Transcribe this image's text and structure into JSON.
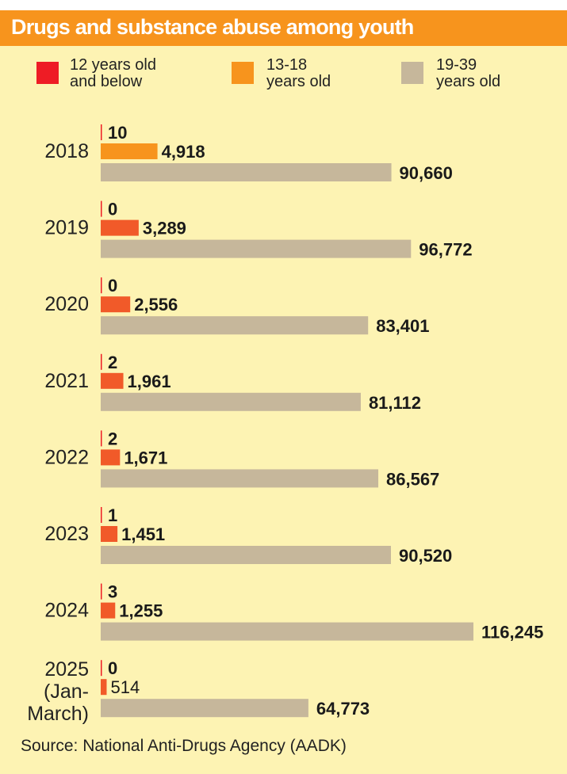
{
  "title": "Drugs and substance abuse among youth",
  "legend": [
    {
      "label": "12 years old\nand below",
      "color": "#ee1c25"
    },
    {
      "label": "13-18\nyears old",
      "color": "#f7941d"
    },
    {
      "label": "19-39\nyears old",
      "color": "#c6b79b"
    }
  ],
  "colors": {
    "background": "#fdf3b3",
    "title_bar": "#f7941d",
    "bar_12_and_below": "#ee1c25",
    "bar_13_18_2018": "#f7941d",
    "bar_13_18": "#f15a29",
    "bar_19_39": "#c6b79b"
  },
  "chart_data": {
    "type": "bar",
    "orientation": "horizontal",
    "categories": [
      "2018",
      "2019",
      "2020",
      "2021",
      "2022",
      "2023",
      "2024",
      "2025\n(Jan-\nMarch)"
    ],
    "series": [
      {
        "name": "12 years old and below",
        "values": [
          10,
          0,
          0,
          2,
          2,
          1,
          3,
          0
        ],
        "labels": [
          "10",
          "0",
          "0",
          "2",
          "2",
          "1",
          "3",
          "0"
        ]
      },
      {
        "name": "13-18 years old",
        "values": [
          4918,
          3289,
          2556,
          1961,
          1671,
          1451,
          1255,
          514
        ],
        "labels": [
          "4,918",
          "3,289",
          "2,556",
          "1,961",
          "1,671",
          "1,451",
          "1,255",
          "514"
        ]
      },
      {
        "name": "19-39 years old",
        "values": [
          90660,
          96772,
          83401,
          81112,
          86567,
          90520,
          116245,
          64773
        ],
        "labels": [
          "90,660",
          "96,772",
          "83,401",
          "81,112",
          "86,567",
          "90,520",
          "116,245",
          "64,773"
        ]
      }
    ],
    "xlim": [
      0,
      116245
    ],
    "grid": false,
    "legend_position": "top"
  },
  "source": "Source:  National Anti-Drugs Agency (AADK)"
}
